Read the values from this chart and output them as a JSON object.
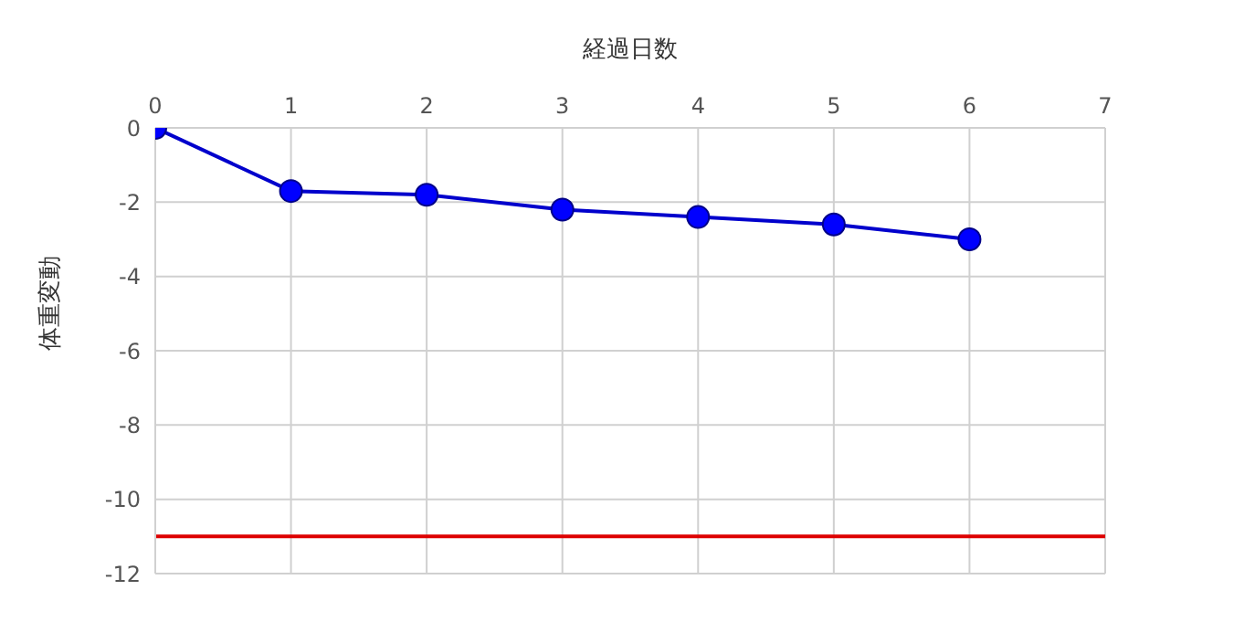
{
  "chart_data": {
    "type": "line",
    "xlabel": "経過日数",
    "ylabel": "体重変動",
    "x": [
      0,
      1,
      2,
      3,
      4,
      5,
      6
    ],
    "series": [
      {
        "color": "#0000cc",
        "values": [
          0,
          -1.7,
          -1.8,
          -2.2,
          -2.4,
          -2.6,
          -3.0
        ]
      }
    ],
    "xlim": [
      0,
      7
    ],
    "xticks": [
      0,
      1,
      2,
      3,
      4,
      5,
      6,
      7
    ],
    "ylim": [
      -12,
      0
    ],
    "yticks": [
      0,
      -2,
      -4,
      -6,
      -8,
      -10,
      -12
    ],
    "ref_lines": [
      {
        "axis": "y",
        "value": -11,
        "color": "#dd0000"
      }
    ],
    "grid": true,
    "legend": false,
    "marker": "circle",
    "line_style": "solid"
  }
}
